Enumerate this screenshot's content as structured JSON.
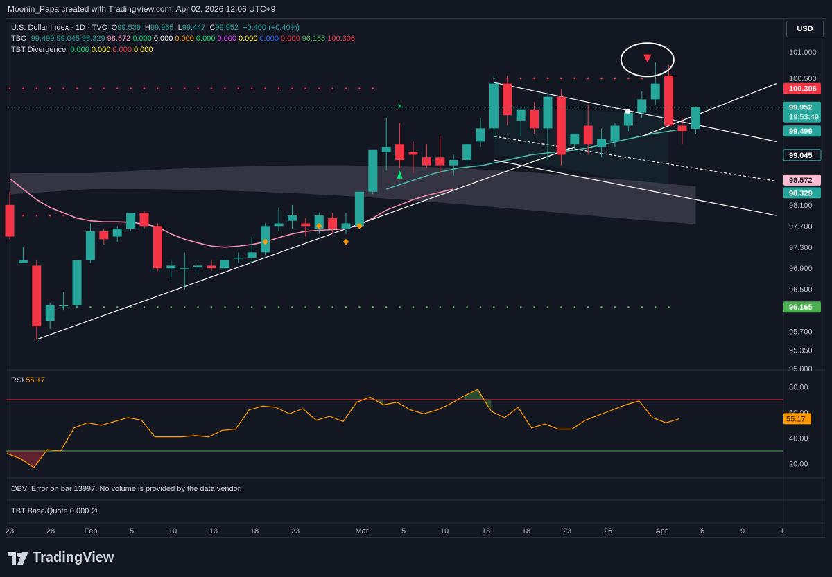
{
  "header": {
    "caption": "Moonin_Papa created with TradingView.com, Apr 02, 2026 12:06 UTC+9"
  },
  "legend": {
    "symbol_line": {
      "name": "U.S. Dollar Index · 1D · TVC",
      "open_label": "O",
      "open": "99.539",
      "high_label": "H",
      "high": "99.965",
      "low_label": "L",
      "low": "99.447",
      "close_label": "C",
      "close": "99.952",
      "change": "+0.400 (+0.40%)"
    },
    "tbo": {
      "name": "TBO",
      "values": [
        {
          "v": "99.499",
          "color": "#26a69a"
        },
        {
          "v": "99.045",
          "color": "#26a69a"
        },
        {
          "v": "98.329",
          "color": "#26a69a"
        },
        {
          "v": "98.572",
          "color": "#f48fb1"
        },
        {
          "v": "0.000",
          "color": "#00e676"
        },
        {
          "v": "0.000",
          "color": "#ffffff"
        },
        {
          "v": "0.000",
          "color": "#ff9800"
        },
        {
          "v": "0.000",
          "color": "#00e676"
        },
        {
          "v": "0.000",
          "color": "#e040fb"
        },
        {
          "v": "0.000",
          "color": "#ffeb3b"
        },
        {
          "v": "0.000",
          "color": "#2962ff"
        },
        {
          "v": "0.000",
          "color": "#f23645"
        },
        {
          "v": "96.165",
          "color": "#4caf50"
        },
        {
          "v": "100.306",
          "color": "#f23645"
        }
      ]
    },
    "tbt_div": {
      "name": "TBT Divergence",
      "values": [
        {
          "v": "0.000",
          "color": "#00e676"
        },
        {
          "v": "0.000",
          "color": "#ffeb3b"
        },
        {
          "v": "0.000",
          "color": "#f23645"
        },
        {
          "v": "0.000",
          "color": "#ffeb3b"
        }
      ]
    }
  },
  "currency_button": "USD",
  "price_axis": [
    "101.000",
    "100.500",
    "99.952",
    "99.499",
    "99.045",
    "98.572",
    "98.329",
    "98.100",
    "97.700",
    "97.300",
    "96.900",
    "96.500",
    "96.165",
    "95.700",
    "95.350",
    "95.000"
  ],
  "price_badges": [
    {
      "value": "100.306",
      "bg": "#f23645",
      "fg": "#ffffff"
    },
    {
      "value": "99.952",
      "countdown": "19:53:49",
      "bg": "#26a69a",
      "fg": "#ffffff"
    },
    {
      "value": "99.499",
      "bg": "#26a69a",
      "fg": "#ffffff"
    },
    {
      "value": "99.045",
      "bg": "#131722",
      "fg": "#ffffff",
      "border": "#26a69a"
    },
    {
      "value": "98.572",
      "bg": "#f8bbd0",
      "fg": "#131722"
    },
    {
      "value": "98.329",
      "bg": "#26a69a",
      "fg": "#ffffff"
    },
    {
      "value": "96.165",
      "bg": "#4caf50",
      "fg": "#ffffff"
    }
  ],
  "rsi": {
    "name": "RSI",
    "value": "55.17",
    "axis": [
      "80.00",
      "60.00",
      "40.00",
      "20.00"
    ],
    "upper": 70,
    "lower": 30
  },
  "obv": {
    "message": "OBV: Error on bar 13997: No volume is provided by the data vendor."
  },
  "tbt_bq": {
    "name": "TBT Base/Quote",
    "value": "0.000",
    "suffix": "∅"
  },
  "time_axis": [
    "23",
    "28",
    "Feb",
    "5",
    "10",
    "13",
    "18",
    "23",
    "Mar",
    "5",
    "10",
    "13",
    "18",
    "23",
    "26",
    "Apr",
    "6",
    "9",
    "1"
  ],
  "brand": "TradingView",
  "colors": {
    "up": "#26a69a",
    "down": "#f23645",
    "rsi_line": "#ff9800",
    "ma": "#f48fb1"
  },
  "chart_data": [
    {
      "type": "candlestick",
      "title": "U.S. Dollar Index · 1D · TVC",
      "ylim": [
        95.0,
        101.3
      ],
      "x_ticks": [
        "23",
        "28",
        "Feb",
        "5",
        "10",
        "13",
        "18",
        "23",
        "Mar",
        "5",
        "10",
        "13",
        "18",
        "23",
        "26",
        "Apr",
        "6",
        "9",
        "1"
      ],
      "ohlc": [
        [
          98.1,
          98.35,
          97.45,
          97.5
        ],
        [
          97.0,
          97.3,
          97.0,
          97.05
        ],
        [
          96.95,
          97.05,
          95.55,
          95.8
        ],
        [
          95.9,
          96.25,
          95.75,
          96.2
        ],
        [
          96.2,
          96.45,
          96.1,
          96.2
        ],
        [
          96.2,
          97.05,
          96.15,
          97.05
        ],
        [
          97.05,
          97.75,
          97.0,
          97.6
        ],
        [
          97.6,
          97.65,
          97.35,
          97.45
        ],
        [
          97.5,
          97.7,
          97.4,
          97.65
        ],
        [
          97.65,
          97.95,
          97.6,
          97.95
        ],
        [
          97.95,
          97.98,
          97.65,
          97.7
        ],
        [
          97.7,
          97.75,
          96.85,
          96.9
        ],
        [
          96.9,
          97.05,
          96.7,
          96.95
        ],
        [
          96.9,
          97.2,
          96.5,
          96.9
        ],
        [
          96.92,
          97.0,
          96.8,
          96.95
        ],
        [
          96.95,
          97.05,
          96.85,
          96.9
        ],
        [
          96.9,
          97.1,
          96.85,
          97.05
        ],
        [
          97.1,
          97.2,
          97.0,
          97.1
        ],
        [
          97.1,
          97.5,
          97.0,
          97.2
        ],
        [
          97.2,
          97.75,
          97.15,
          97.7
        ],
        [
          97.7,
          98.05,
          97.6,
          97.75
        ],
        [
          97.8,
          98.1,
          97.65,
          97.9
        ],
        [
          97.75,
          97.85,
          97.5,
          97.7
        ],
        [
          97.65,
          97.95,
          97.55,
          97.9
        ],
        [
          97.85,
          97.95,
          97.55,
          97.65
        ],
        [
          97.65,
          97.95,
          97.55,
          97.75
        ],
        [
          97.7,
          98.35,
          97.7,
          98.35
        ],
        [
          98.35,
          99.15,
          98.3,
          99.15
        ],
        [
          99.1,
          99.75,
          98.75,
          99.2
        ],
        [
          99.25,
          99.65,
          98.8,
          98.95
        ],
        [
          99.1,
          99.3,
          98.7,
          99.05
        ],
        [
          99.0,
          99.25,
          98.8,
          98.85
        ],
        [
          99.0,
          99.4,
          98.7,
          98.85
        ],
        [
          98.85,
          99.05,
          98.65,
          98.95
        ],
        [
          98.95,
          99.25,
          98.85,
          99.25
        ],
        [
          99.3,
          99.75,
          99.2,
          99.55
        ],
        [
          99.55,
          100.55,
          99.35,
          100.4
        ],
        [
          100.4,
          100.55,
          99.6,
          99.8
        ],
        [
          99.7,
          99.95,
          99.4,
          99.9
        ],
        [
          99.9,
          100.05,
          99.45,
          99.55
        ],
        [
          99.55,
          100.2,
          98.95,
          100.15
        ],
        [
          100.15,
          100.3,
          98.85,
          99.05
        ],
        [
          99.25,
          99.45,
          99.15,
          99.45
        ],
        [
          99.6,
          100.0,
          99.05,
          99.25
        ],
        [
          99.2,
          99.55,
          99.0,
          99.35
        ],
        [
          99.3,
          99.65,
          99.2,
          99.6
        ],
        [
          99.6,
          99.8,
          99.5,
          99.85
        ],
        [
          99.85,
          100.25,
          99.75,
          100.1
        ],
        [
          100.1,
          100.8,
          100.0,
          100.4
        ],
        [
          100.55,
          100.75,
          99.6,
          99.6
        ],
        [
          99.6,
          99.75,
          99.25,
          99.5
        ],
        [
          99.54,
          99.965,
          99.447,
          99.952
        ]
      ]
    },
    {
      "type": "line",
      "title": "RSI",
      "ylim": [
        10,
        90
      ],
      "series": [
        {
          "name": "RSI",
          "values": [
            28,
            24,
            17,
            31,
            30,
            48,
            52,
            50,
            53,
            56,
            54,
            41,
            41,
            41,
            42,
            41,
            46,
            47,
            62,
            65,
            64,
            59,
            63,
            54,
            57,
            53,
            68,
            72,
            66,
            68,
            62,
            59,
            62,
            67,
            73,
            78,
            61,
            56,
            64,
            48,
            51,
            47,
            47,
            54,
            58,
            62,
            66,
            69,
            56,
            52,
            55.17
          ]
        }
      ]
    }
  ]
}
